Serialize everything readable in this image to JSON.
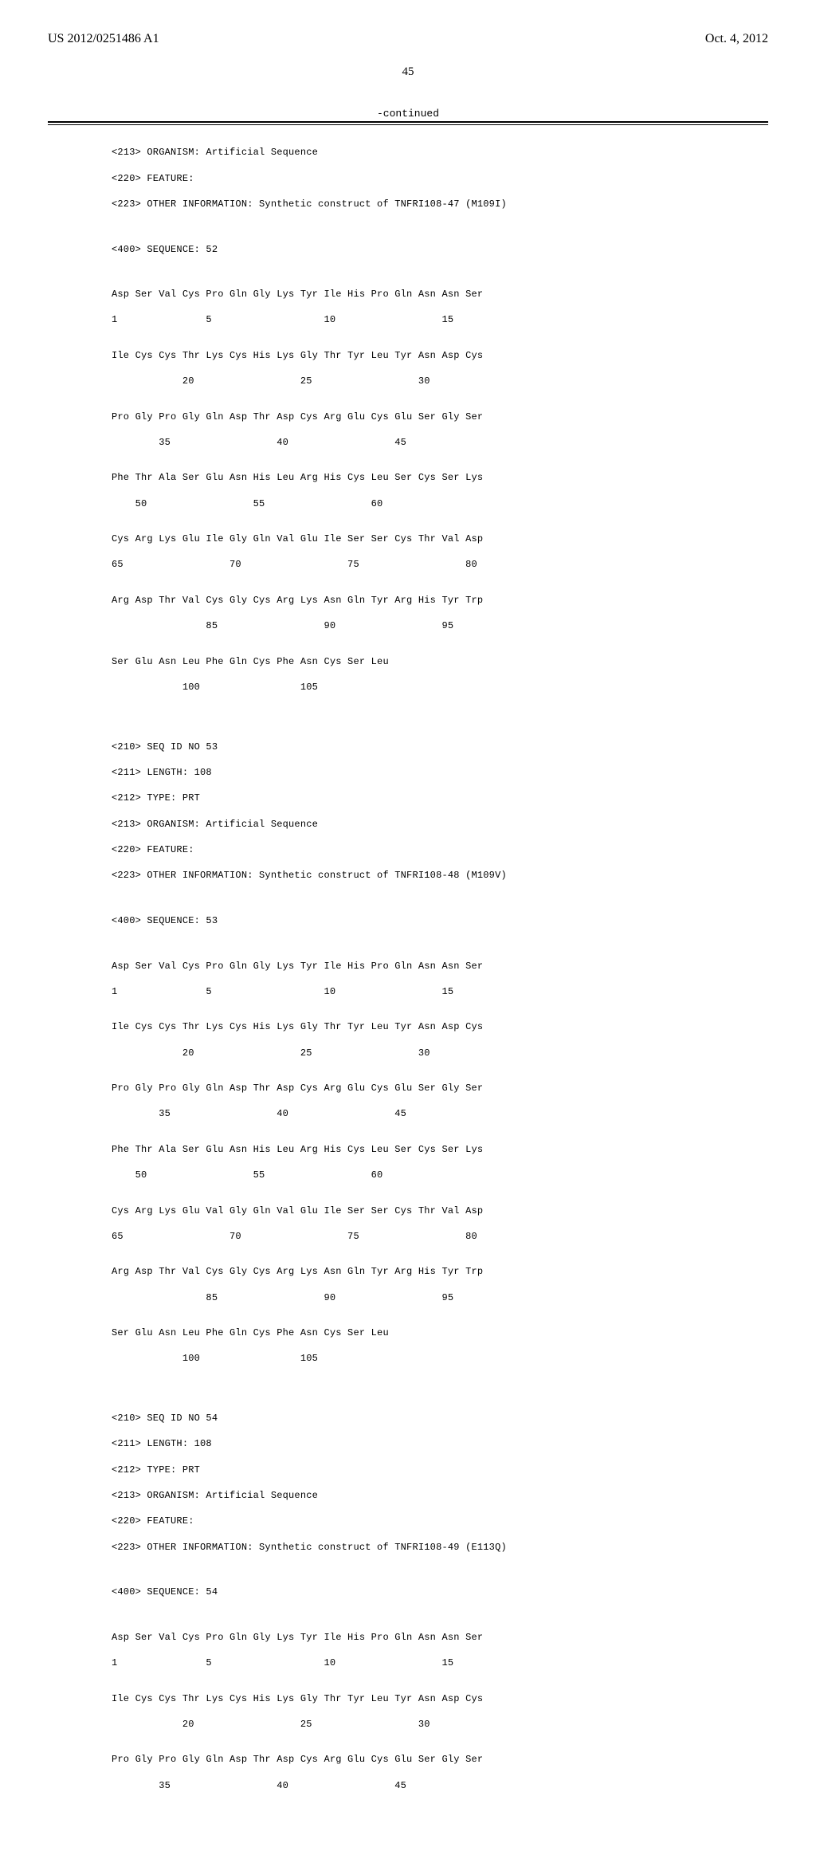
{
  "header": {
    "pub_number": "US 2012/0251486 A1",
    "pub_date": "Oct. 4, 2012"
  },
  "page_number": "45",
  "continued_label": "-continued",
  "seq52": {
    "annot_organism": "<213> ORGANISM: Artificial Sequence",
    "annot_feature": "<220> FEATURE:",
    "annot_other": "<223> OTHER INFORMATION: Synthetic construct of TNFRI108-47 (M109I)",
    "seq_declare": "<400> SEQUENCE: 52",
    "row1": "Asp Ser Val Cys Pro Gln Gly Lys Tyr Ile His Pro Gln Asn Asn Ser",
    "num1": "1               5                   10                  15",
    "row2": "Ile Cys Cys Thr Lys Cys His Lys Gly Thr Tyr Leu Tyr Asn Asp Cys",
    "num2": "            20                  25                  30",
    "row3": "Pro Gly Pro Gly Gln Asp Thr Asp Cys Arg Glu Cys Glu Ser Gly Ser",
    "num3": "        35                  40                  45",
    "row4": "Phe Thr Ala Ser Glu Asn His Leu Arg His Cys Leu Ser Cys Ser Lys",
    "num4": "    50                  55                  60",
    "row5": "Cys Arg Lys Glu Ile Gly Gln Val Glu Ile Ser Ser Cys Thr Val Asp",
    "num5": "65                  70                  75                  80",
    "row6": "Arg Asp Thr Val Cys Gly Cys Arg Lys Asn Gln Tyr Arg His Tyr Trp",
    "num6": "                85                  90                  95",
    "row7": "Ser Glu Asn Leu Phe Gln Cys Phe Asn Cys Ser Leu",
    "num7": "            100                 105"
  },
  "seq53": {
    "annot_id": "<210> SEQ ID NO 53",
    "annot_len": "<211> LENGTH: 108",
    "annot_type": "<212> TYPE: PRT",
    "annot_organism": "<213> ORGANISM: Artificial Sequence",
    "annot_feature": "<220> FEATURE:",
    "annot_other": "<223> OTHER INFORMATION: Synthetic construct of TNFRI108-48 (M109V)",
    "seq_declare": "<400> SEQUENCE: 53",
    "row1": "Asp Ser Val Cys Pro Gln Gly Lys Tyr Ile His Pro Gln Asn Asn Ser",
    "num1": "1               5                   10                  15",
    "row2": "Ile Cys Cys Thr Lys Cys His Lys Gly Thr Tyr Leu Tyr Asn Asp Cys",
    "num2": "            20                  25                  30",
    "row3": "Pro Gly Pro Gly Gln Asp Thr Asp Cys Arg Glu Cys Glu Ser Gly Ser",
    "num3": "        35                  40                  45",
    "row4": "Phe Thr Ala Ser Glu Asn His Leu Arg His Cys Leu Ser Cys Ser Lys",
    "num4": "    50                  55                  60",
    "row5": "Cys Arg Lys Glu Val Gly Gln Val Glu Ile Ser Ser Cys Thr Val Asp",
    "num5": "65                  70                  75                  80",
    "row6": "Arg Asp Thr Val Cys Gly Cys Arg Lys Asn Gln Tyr Arg His Tyr Trp",
    "num6": "                85                  90                  95",
    "row7": "Ser Glu Asn Leu Phe Gln Cys Phe Asn Cys Ser Leu",
    "num7": "            100                 105"
  },
  "seq54": {
    "annot_id": "<210> SEQ ID NO 54",
    "annot_len": "<211> LENGTH: 108",
    "annot_type": "<212> TYPE: PRT",
    "annot_organism": "<213> ORGANISM: Artificial Sequence",
    "annot_feature": "<220> FEATURE:",
    "annot_other": "<223> OTHER INFORMATION: Synthetic construct of TNFRI108-49 (E113Q)",
    "seq_declare": "<400> SEQUENCE: 54",
    "row1": "Asp Ser Val Cys Pro Gln Gly Lys Tyr Ile His Pro Gln Asn Asn Ser",
    "num1": "1               5                   10                  15",
    "row2": "Ile Cys Cys Thr Lys Cys His Lys Gly Thr Tyr Leu Tyr Asn Asp Cys",
    "num2": "            20                  25                  30",
    "row3": "Pro Gly Pro Gly Gln Asp Thr Asp Cys Arg Glu Cys Glu Ser Gly Ser",
    "num3": "        35                  40                  45"
  }
}
